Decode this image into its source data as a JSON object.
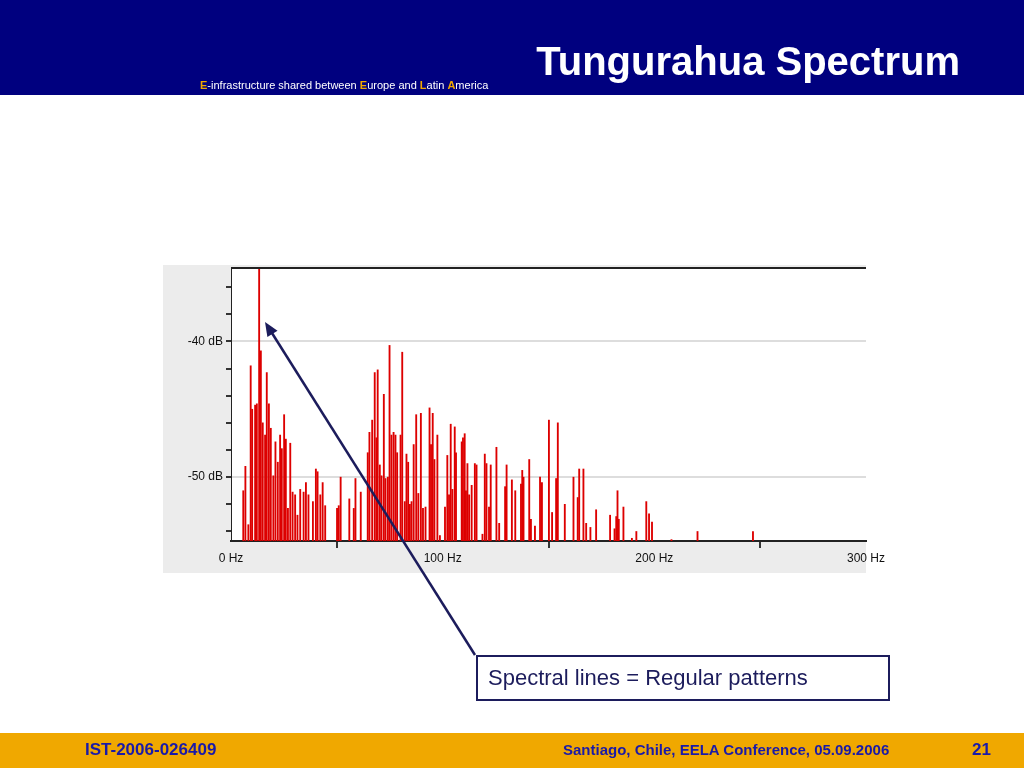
{
  "chart_data": {
    "type": "bar",
    "title": "Tungurahua Spectrum",
    "subtitle": "E-infrastructure shared between Europe and Latin America",
    "x": [
      5.8,
      6.8,
      8.2,
      9.3,
      10.0,
      11.4,
      12.2,
      13.3,
      14.1,
      15.0,
      16.1,
      16.9,
      17.9,
      18.8,
      20.0,
      21.0,
      22.1,
      23.2,
      24.0,
      25.1,
      25.9,
      26.9,
      28.0,
      29.1,
      30.3,
      31.4,
      32.7,
      34.3,
      35.4,
      36.6,
      38.7,
      40.1,
      40.9,
      42.2,
      43.3,
      44.5,
      50.1,
      50.9,
      51.8,
      55.9,
      58.0,
      58.8,
      61.3,
      64.6,
      65.4,
      66.7,
      67.9,
      68.7,
      69.3,
      70.3,
      71.1,
      72.2,
      73.0,
      74.1,
      74.9,
      75.8,
      76.8,
      77.7,
      78.5,
      80.1,
      80.9,
      82.1,
      82.9,
      83.7,
      84.5,
      85.3,
      86.3,
      87.5,
      88.5,
      89.7,
      90.7,
      91.9,
      93.8,
      94.5,
      95.3,
      96.1,
      97.5,
      98.7,
      101.1,
      102.2,
      103.0,
      103.8,
      104.6,
      105.7,
      106.3,
      109.0,
      109.6,
      110.4,
      111.0,
      111.7,
      112.5,
      113.7,
      115.2,
      116.0,
      118.8,
      119.9,
      120.7,
      121.9,
      122.7,
      125.4,
      126.7,
      129.5,
      130.2,
      132.7,
      134.3,
      137.0,
      137.6,
      138.2,
      140.9,
      141.7,
      143.6,
      146.0,
      146.9,
      150.2,
      151.7,
      153.6,
      154.4,
      157.7,
      161.8,
      163.8,
      164.5,
      166.5,
      167.8,
      169.8,
      172.5,
      179.1,
      181.2,
      182.0,
      182.6,
      183.2,
      185.4,
      189.4,
      191.5,
      196.2,
      197.5,
      198.9,
      208.1,
      220.4,
      246.6
    ],
    "values": [
      3.7,
      5.5,
      1.2,
      12.9,
      9.7,
      10.0,
      10.1,
      20.1,
      14.0,
      8.7,
      7.8,
      12.4,
      10.1,
      8.3,
      4.8,
      7.3,
      5.8,
      7.8,
      6.8,
      9.3,
      7.5,
      2.4,
      7.2,
      3.6,
      3.4,
      1.9,
      3.8,
      3.6,
      4.3,
      3.4,
      2.9,
      5.3,
      5.1,
      3.4,
      4.3,
      2.6,
      2.4,
      2.6,
      4.7,
      3.1,
      2.4,
      4.6,
      3.6,
      6.5,
      8.0,
      8.9,
      12.4,
      7.6,
      12.6,
      5.6,
      4.8,
      10.8,
      4.6,
      4.7,
      14.4,
      7.8,
      8.0,
      7.8,
      6.5,
      7.8,
      13.9,
      2.9,
      6.4,
      5.8,
      2.7,
      2.9,
      7.1,
      9.3,
      3.5,
      9.4,
      2.4,
      2.5,
      9.8,
      7.1,
      9.4,
      6.0,
      7.8,
      0.4,
      2.5,
      6.3,
      3.4,
      8.6,
      3.8,
      8.4,
      6.5,
      7.3,
      7.6,
      7.9,
      3.7,
      5.7,
      3.4,
      4.1,
      5.7,
      5.6,
      0.5,
      6.4,
      5.7,
      2.5,
      5.6,
      6.9,
      1.3,
      4.0,
      5.6,
      4.5,
      3.7,
      4.2,
      5.2,
      4.7,
      6.0,
      1.6,
      1.1,
      4.7,
      4.3,
      8.9,
      2.1,
      4.6,
      8.7,
      2.7,
      4.7,
      3.2,
      5.3,
      5.3,
      1.3,
      1.0,
      2.3,
      1.9,
      0.9,
      1.8,
      3.7,
      1.6,
      2.5,
      0.2,
      0.7,
      2.9,
      2.0,
      1.4,
      0.1,
      0.7,
      0.7
    ],
    "base": [
      -54.7,
      -54.7,
      -54.7,
      -54.7,
      -54.7,
      -54.7,
      -54.7,
      -54.7,
      -54.7,
      -54.7,
      -54.7,
      -54.7,
      -54.7,
      -54.7,
      -54.7,
      -54.7,
      -54.7,
      -54.7,
      -54.7,
      -54.7,
      -54.7,
      -54.7,
      -54.7,
      -54.7,
      -54.7,
      -54.7,
      -54.7,
      -54.7,
      -54.7,
      -54.7,
      -54.7,
      -54.7,
      -54.7,
      -54.7,
      -54.7,
      -54.7,
      -54.7,
      -54.7,
      -54.7,
      -54.7,
      -54.7,
      -54.7,
      -54.7,
      -54.7,
      -54.7,
      -54.7,
      -54.7,
      -54.7,
      -54.7,
      -54.7,
      -54.7,
      -54.7,
      -54.7,
      -54.7,
      -54.7,
      -54.7,
      -54.7,
      -54.7,
      -54.7,
      -54.7,
      -54.7,
      -54.7,
      -54.7,
      -54.7,
      -54.7,
      -54.7,
      -54.7,
      -54.7,
      -54.7,
      -54.7,
      -54.7,
      -54.7,
      -54.7,
      -54.7,
      -54.7,
      -54.7,
      -54.7,
      -54.7,
      -54.7,
      -54.7,
      -54.7,
      -54.7,
      -54.7,
      -54.7,
      -54.7,
      -54.7,
      -54.7,
      -54.7,
      -54.7,
      -54.7,
      -54.7,
      -54.7,
      -54.7,
      -54.7,
      -54.7,
      -54.7,
      -54.7,
      -54.7,
      -54.7,
      -54.7,
      -54.7,
      -54.7,
      -54.7,
      -54.7,
      -54.7,
      -54.7,
      -54.7,
      -54.7,
      -54.7,
      -54.7,
      -54.7,
      -54.7,
      -54.7,
      -54.7,
      -54.7,
      -54.7,
      -54.7,
      -54.7,
      -54.7,
      -54.7,
      -54.7,
      -54.7,
      -54.7,
      -54.7,
      -54.7,
      -54.7,
      -54.7,
      -54.7,
      -54.7,
      -54.7,
      -54.7,
      -54.7,
      -54.7,
      -54.7,
      -54.7,
      -54.7,
      -54.7,
      -54.7,
      -54.7
    ],
    "color": "#dd0000",
    "xlim": [
      0,
      300
    ],
    "xticks": [
      {
        "value": 0,
        "label": "0 Hz"
      },
      {
        "value": 100,
        "label": "100 Hz"
      },
      {
        "value": 200,
        "label": "200 Hz"
      },
      {
        "value": 300,
        "label": "300 Hz"
      }
    ],
    "ylim": [
      -54.7,
      -34.6
    ],
    "yticks": [
      {
        "value": -54,
        "label": null
      },
      {
        "value": -52,
        "label": null
      },
      {
        "value": -50,
        "label": "-50 dB"
      },
      {
        "value": -48,
        "label": null
      },
      {
        "value": -46,
        "label": null
      },
      {
        "value": -44,
        "label": null
      },
      {
        "value": -42,
        "label": null
      },
      {
        "value": -40,
        "label": "-40 dB"
      },
      {
        "value": -38,
        "label": null
      },
      {
        "value": -36,
        "label": null
      }
    ],
    "grid": "y",
    "legend": false,
    "annotations": [
      "Spectral lines = Regular patterns",
      "IST-2006-026409",
      "Santiago, Chile, EELA Conference, 05.09.2006",
      "21"
    ]
  }
}
